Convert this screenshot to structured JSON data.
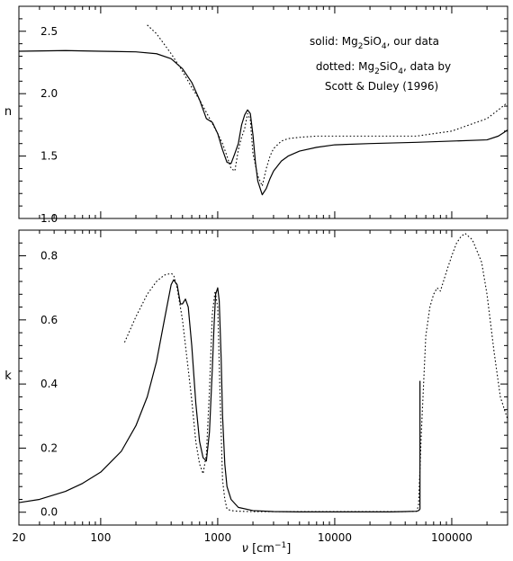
{
  "chart_data": [
    {
      "type": "line",
      "title": "",
      "xscale": "log",
      "xlim": [
        20,
        300000
      ],
      "ylim": [
        1.0,
        2.7
      ],
      "xlabel": "",
      "ylabel": "n",
      "yticks": [
        1.0,
        1.5,
        2.0,
        2.5
      ],
      "yticklabels": [
        "1.0",
        "1.5",
        "2.0",
        "2.5"
      ],
      "grid": false,
      "annotations": {
        "solid": {
          "prefix": "solid: Mg",
          "sub1": "2",
          "mid": "SiO",
          "sub2": "4",
          "suffix": ", our data"
        },
        "dotted": {
          "prefix": "dotted: Mg",
          "sub1": "2",
          "mid": "SiO",
          "sub2": "4",
          "suffix": ", data by"
        },
        "citation": "Scott & Duley (1996)"
      },
      "series": [
        {
          "style": "solid",
          "x": [
            20,
            50,
            100,
            200,
            300,
            400,
            500,
            600,
            700,
            800,
            900,
            1000,
            1100,
            1200,
            1300,
            1400,
            1500,
            1600,
            1700,
            1800,
            1900,
            2000,
            2100,
            2200,
            2400,
            2600,
            2800,
            3000,
            3500,
            4000,
            5000,
            7000,
            10000,
            20000,
            50000,
            100000,
            200000,
            250000,
            280000,
            300000
          ],
          "y": [
            2.34,
            2.345,
            2.34,
            2.335,
            2.32,
            2.28,
            2.2,
            2.09,
            1.95,
            1.8,
            1.77,
            1.68,
            1.55,
            1.45,
            1.44,
            1.52,
            1.6,
            1.75,
            1.83,
            1.87,
            1.84,
            1.67,
            1.45,
            1.3,
            1.19,
            1.24,
            1.32,
            1.38,
            1.46,
            1.5,
            1.54,
            1.57,
            1.59,
            1.6,
            1.61,
            1.62,
            1.63,
            1.66,
            1.69,
            1.71
          ]
        },
        {
          "style": "dotted",
          "x": [
            250,
            300,
            400,
            500,
            600,
            700,
            800,
            900,
            1000,
            1100,
            1200,
            1300,
            1400,
            1500,
            1600,
            1700,
            1800,
            1900,
            2000,
            2200,
            2400,
            2600,
            2800,
            3000,
            3500,
            4000,
            5000,
            7000,
            10000,
            20000,
            30000,
            50000,
            100000,
            200000,
            250000,
            300000
          ],
          "y": [
            2.55,
            2.48,
            2.32,
            2.18,
            2.05,
            1.95,
            1.85,
            1.76,
            1.68,
            1.6,
            1.5,
            1.4,
            1.38,
            1.55,
            1.65,
            1.72,
            1.84,
            1.79,
            1.52,
            1.34,
            1.26,
            1.4,
            1.5,
            1.56,
            1.62,
            1.64,
            1.65,
            1.66,
            1.66,
            1.66,
            1.66,
            1.66,
            1.7,
            1.8,
            1.87,
            1.93
          ]
        }
      ]
    },
    {
      "type": "line",
      "title": "",
      "xscale": "log",
      "xlim": [
        20,
        300000
      ],
      "ylim": [
        -0.04,
        0.88
      ],
      "xlabel": {
        "nu": "ν",
        "open": " [cm",
        "sup": "−1",
        "close": "]"
      },
      "ylabel": "k",
      "xticks": [
        20,
        100,
        1000,
        10000,
        100000
      ],
      "xticklabels": [
        "20",
        "100",
        "1000",
        "10000",
        "100000"
      ],
      "yticks": [
        0.0,
        0.2,
        0.4,
        0.6,
        0.8
      ],
      "yticklabels": [
        "0.0",
        "0.2",
        "0.4",
        "0.6",
        "0.8"
      ],
      "grid": false,
      "series": [
        {
          "style": "solid",
          "x": [
            20,
            30,
            50,
            70,
            100,
            150,
            200,
            250,
            300,
            350,
            400,
            420,
            450,
            480,
            500,
            530,
            560,
            600,
            650,
            700,
            750,
            800,
            850,
            900,
            930,
            960,
            1000,
            1030,
            1070,
            1100,
            1150,
            1200,
            1300,
            1500,
            2000,
            3000,
            5000,
            10000,
            20000,
            30000,
            40000,
            50000,
            52000,
            53000,
            53500,
            53500
          ],
          "y": [
            0.03,
            0.04,
            0.065,
            0.09,
            0.125,
            0.19,
            0.27,
            0.36,
            0.47,
            0.6,
            0.71,
            0.725,
            0.71,
            0.65,
            0.65,
            0.665,
            0.64,
            0.52,
            0.34,
            0.22,
            0.17,
            0.16,
            0.25,
            0.45,
            0.58,
            0.68,
            0.7,
            0.66,
            0.48,
            0.3,
            0.15,
            0.08,
            0.04,
            0.015,
            0.005,
            0.002,
            0.001,
            0.001,
            0.001,
            0.001,
            0.002,
            0.003,
            0.005,
            0.008,
            0.01,
            0.41
          ]
        },
        {
          "style": "dotted",
          "x": [
            160,
            200,
            250,
            300,
            350,
            400,
            420,
            450,
            500,
            550,
            600,
            650,
            700,
            750,
            800,
            850,
            900,
            950,
            1000,
            1050,
            1100,
            1150,
            1200,
            1300,
            1500,
            2000,
            3000,
            5000,
            10000,
            20000,
            30000,
            40000,
            50000,
            52000,
            55000,
            60000,
            65000,
            70000,
            75000,
            80000,
            90000,
            100000,
            110000,
            120000,
            130000,
            150000,
            180000,
            200000,
            230000,
            260000,
            300000
          ],
          "y": [
            0.53,
            0.61,
            0.68,
            0.72,
            0.74,
            0.745,
            0.74,
            0.7,
            0.6,
            0.47,
            0.35,
            0.22,
            0.15,
            0.12,
            0.18,
            0.38,
            0.62,
            0.69,
            0.64,
            0.35,
            0.1,
            0.04,
            0.01,
            0.005,
            0.003,
            0.002,
            0.002,
            0.002,
            0.002,
            0.002,
            0.002,
            0.002,
            0.003,
            0.02,
            0.25,
            0.55,
            0.64,
            0.68,
            0.7,
            0.69,
            0.75,
            0.8,
            0.84,
            0.86,
            0.87,
            0.85,
            0.78,
            0.68,
            0.5,
            0.36,
            0.29
          ]
        }
      ]
    }
  ]
}
